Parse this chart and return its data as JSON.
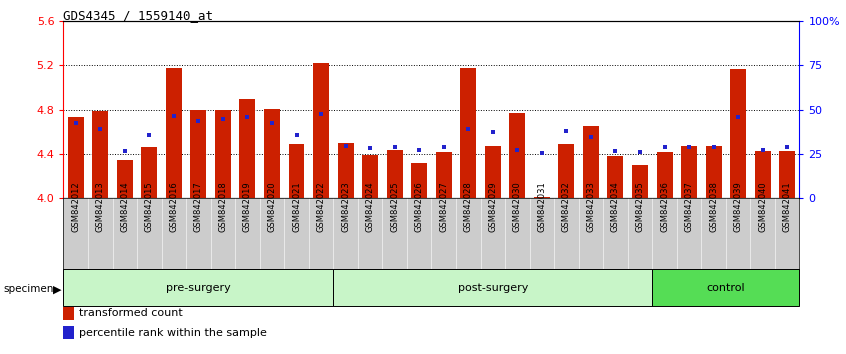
{
  "title": "GDS4345 / 1559140_at",
  "samples": [
    "GSM842012",
    "GSM842013",
    "GSM842014",
    "GSM842015",
    "GSM842016",
    "GSM842017",
    "GSM842018",
    "GSM842019",
    "GSM842020",
    "GSM842021",
    "GSM842022",
    "GSM842023",
    "GSM842024",
    "GSM842025",
    "GSM842026",
    "GSM842027",
    "GSM842028",
    "GSM842029",
    "GSM842030",
    "GSM842031",
    "GSM842032",
    "GSM842033",
    "GSM842034",
    "GSM842035",
    "GSM842036",
    "GSM842037",
    "GSM842038",
    "GSM842039",
    "GSM842040",
    "GSM842041"
  ],
  "red_values": [
    4.73,
    4.79,
    4.35,
    4.46,
    5.18,
    4.8,
    4.8,
    4.9,
    4.81,
    4.49,
    5.22,
    4.5,
    4.39,
    4.44,
    4.32,
    4.42,
    5.18,
    4.47,
    4.77,
    4.01,
    4.49,
    4.65,
    4.38,
    4.3,
    4.42,
    4.47,
    4.47,
    5.17,
    4.43,
    4.43
  ],
  "blue_values": [
    4.68,
    4.63,
    4.43,
    4.57,
    4.74,
    4.7,
    4.72,
    4.73,
    4.68,
    4.57,
    4.76,
    4.47,
    4.45,
    4.46,
    4.44,
    4.46,
    4.63,
    4.6,
    4.44,
    4.41,
    4.61,
    4.55,
    4.43,
    4.42,
    4.46,
    4.46,
    4.46,
    4.73,
    4.44,
    4.46
  ],
  "ylim_min": 4.0,
  "ylim_max": 5.6,
  "yticks_left": [
    4.0,
    4.4,
    4.8,
    5.2,
    5.6
  ],
  "yticks_right_labels": [
    "0",
    "25",
    "50",
    "75",
    "100%"
  ],
  "grid_lines": [
    4.4,
    4.8,
    5.2
  ],
  "bar_color": "#CC2000",
  "dot_color": "#2222CC",
  "bar_bottom": 4.0,
  "bar_width": 0.65,
  "pre_surgery_range": [
    0,
    10
  ],
  "post_surgery_range": [
    11,
    23
  ],
  "control_range": [
    24,
    29
  ],
  "group_color_light": "#c8f5c8",
  "group_color_dark": "#55dd55",
  "tick_label_bg": "#cccccc",
  "legend_items": [
    {
      "color": "#CC2000",
      "label": "transformed count"
    },
    {
      "color": "#2222CC",
      "label": "percentile rank within the sample"
    }
  ]
}
